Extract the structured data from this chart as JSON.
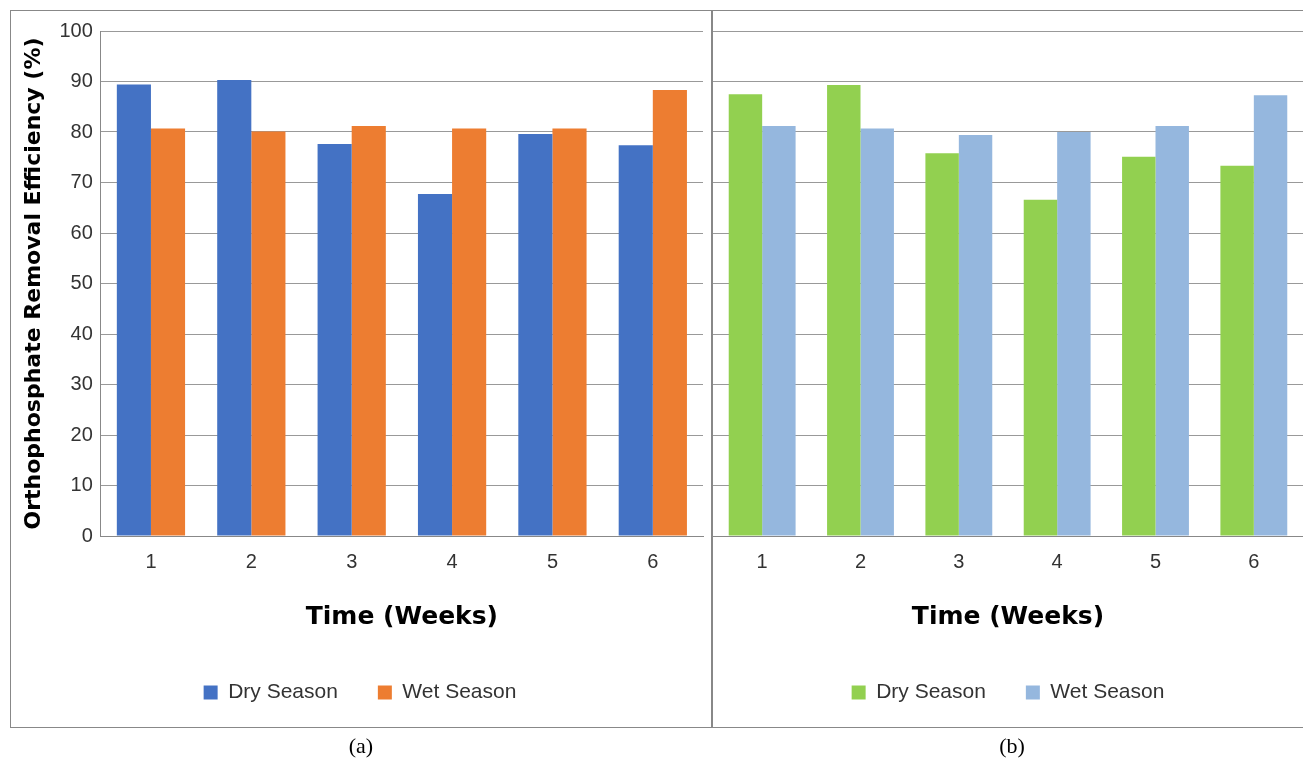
{
  "chart_data": [
    {
      "type": "bar",
      "categories": [
        "1",
        "2",
        "3",
        "4",
        "5",
        "6"
      ],
      "xlabel": "Time (Weeks)",
      "ylabel": "Orthophosphate Removal Efficiency (%)",
      "ylim": [
        0,
        100
      ],
      "yticks": [
        0,
        10,
        20,
        30,
        40,
        50,
        60,
        70,
        80,
        90,
        100
      ],
      "grid": "y",
      "legend": "bottom",
      "annotations": [
        "(a)"
      ],
      "series": [
        {
          "name": "Dry Season",
          "color": "#4472c4",
          "values": [
            89.4,
            90.3,
            77.6,
            67.7,
            79.6,
            77.4
          ]
        },
        {
          "name": "Wet Season",
          "color": "#ed7d31",
          "values": [
            80.7,
            80.1,
            81.2,
            80.7,
            80.7,
            88.3
          ]
        }
      ]
    },
    {
      "type": "bar",
      "categories": [
        "1",
        "2",
        "3",
        "4",
        "5",
        "6"
      ],
      "xlabel": "Time (Weeks)",
      "ylim": [
        0,
        100
      ],
      "yticks": [
        0,
        10,
        20,
        30,
        40,
        50,
        60,
        70,
        80,
        90,
        100
      ],
      "grid": "y",
      "legend": "bottom",
      "tick_labels": "x",
      "annotations": [
        "(b)"
      ],
      "series": [
        {
          "name": "Dry Season",
          "color": "#92d050",
          "values": [
            87.5,
            89.3,
            75.8,
            66.6,
            75.1,
            73.3
          ]
        },
        {
          "name": "Wet Season",
          "color": "#95b7de",
          "values": [
            81.2,
            80.7,
            79.4,
            80.0,
            81.2,
            87.3
          ]
        }
      ]
    }
  ]
}
